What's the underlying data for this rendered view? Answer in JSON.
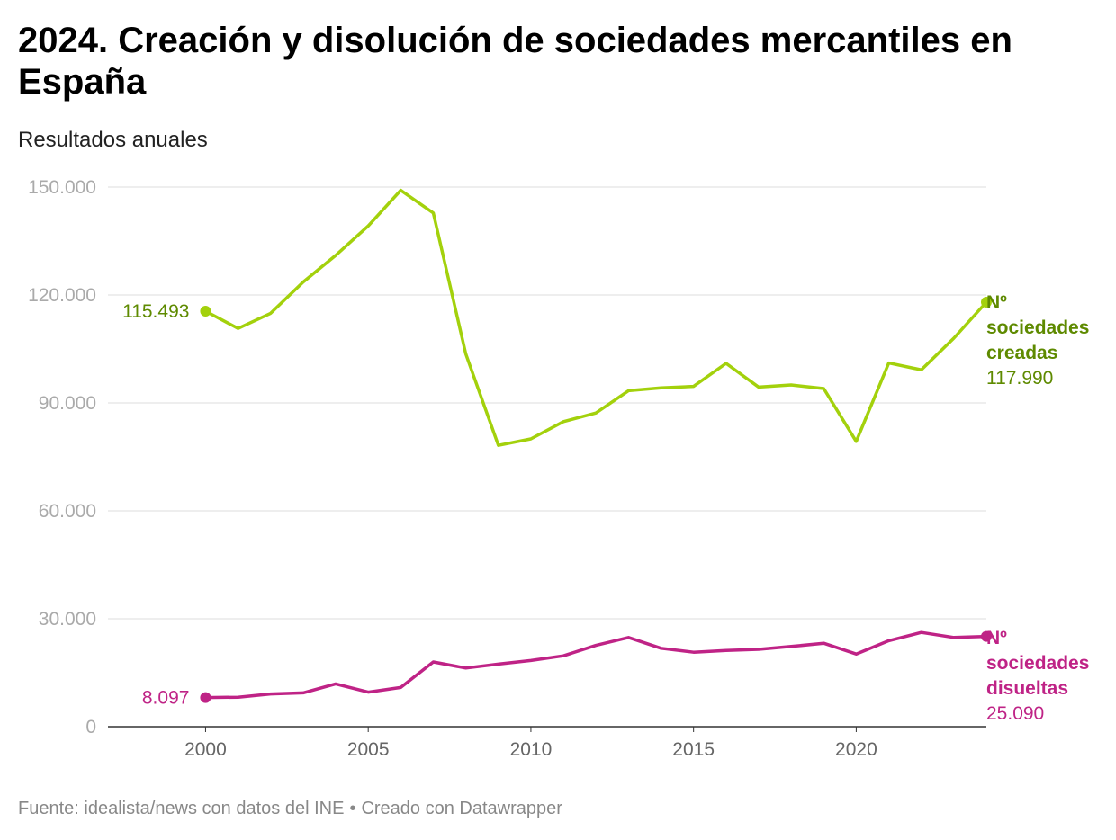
{
  "title": "2024. Creación y disolución de sociedades mercantiles en España",
  "subtitle": "Resultados anuales",
  "footer": {
    "source": "Fuente: idealista/news con datos del INE",
    "separator": "•",
    "credit": "Creado con Datawrapper"
  },
  "colors": {
    "creadas": "#a3d10c",
    "creadas_text": "#5e8a00",
    "disueltas": "#bf2386",
    "grid": "#dddddd",
    "axis": "#333333"
  },
  "chart_data": {
    "type": "line",
    "title": "2024. Creación y disolución de sociedades mercantiles en España",
    "subtitle": "Resultados anuales",
    "xlabel": "",
    "ylabel": "",
    "xlim": [
      1997,
      2024
    ],
    "ylim": [
      0,
      150000
    ],
    "y_ticks": [
      0,
      30000,
      60000,
      90000,
      120000,
      150000
    ],
    "y_tick_labels": [
      "0",
      "30.000",
      "60.000",
      "90.000",
      "120.000",
      "150.000"
    ],
    "x_ticks": [
      2000,
      2005,
      2010,
      2015,
      2020
    ],
    "x_tick_labels": [
      "2000",
      "2005",
      "2010",
      "2015",
      "2020"
    ],
    "grid": true,
    "x": [
      2000,
      2001,
      2002,
      2003,
      2004,
      2005,
      2006,
      2007,
      2008,
      2009,
      2010,
      2011,
      2012,
      2013,
      2014,
      2015,
      2016,
      2017,
      2018,
      2019,
      2020,
      2021,
      2022,
      2023,
      2024
    ],
    "series": [
      {
        "name": "creadas",
        "label_lines": [
          "Nº",
          "sociedades",
          "creadas"
        ],
        "start_label": "115.493",
        "end_label": "117.990",
        "values": [
          115493,
          110700,
          114900,
          123600,
          131000,
          139200,
          149100,
          142800,
          103600,
          78200,
          80000,
          84800,
          87200,
          93400,
          94200,
          94600,
          101000,
          94400,
          95000,
          94000,
          79300,
          101100,
          99200,
          108000,
          117990
        ]
      },
      {
        "name": "disueltas",
        "label_lines": [
          "Nº",
          "sociedades",
          "disueltas"
        ],
        "start_label": "8.097",
        "end_label": "25.090",
        "values": [
          8097,
          8200,
          9100,
          9400,
          11900,
          9600,
          10900,
          18000,
          16300,
          17400,
          18400,
          19700,
          22600,
          24800,
          21800,
          20700,
          21200,
          21500,
          22300,
          23200,
          20200,
          23900,
          26200,
          24800,
          25090
        ]
      }
    ]
  }
}
